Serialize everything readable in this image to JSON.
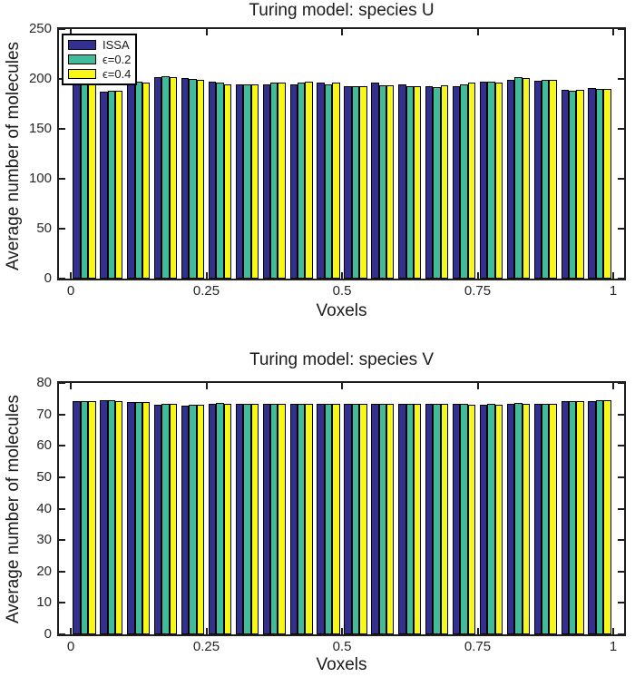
{
  "figure": {
    "axis_color": "#1e1e1e",
    "background": "#ffffff"
  },
  "chart_data": [
    {
      "type": "bar",
      "title": "Turing model: species U",
      "xlabel": "Voxels",
      "ylabel": "Average number of molecules",
      "ylim": [
        0,
        250
      ],
      "yticks": [
        0,
        50,
        100,
        150,
        200,
        250
      ],
      "ytick_labels": [
        "0",
        "50",
        "100",
        "150",
        "200",
        "250"
      ],
      "xticks": [
        0,
        0.25,
        0.5,
        0.75,
        1
      ],
      "xtick_labels": [
        "0",
        "0.25",
        "0.5",
        "0.75",
        "1"
      ],
      "grid": false,
      "legend_position": "northwest",
      "legend_visible": true,
      "x": [
        0.025,
        0.075,
        0.125,
        0.175,
        0.225,
        0.275,
        0.325,
        0.375,
        0.425,
        0.475,
        0.525,
        0.575,
        0.625,
        0.675,
        0.725,
        0.775,
        0.825,
        0.875,
        0.925,
        0.975
      ],
      "series": [
        {
          "name": "ISSA",
          "color": "#343090",
          "values": [
            197,
            187,
            195,
            202,
            201,
            197,
            195,
            195,
            195,
            196,
            193,
            196,
            195,
            193,
            193,
            197,
            199,
            198,
            189,
            191
          ]
        },
        {
          "name": "ϵ=0.2",
          "color": "#40bc9b",
          "values": [
            197,
            188,
            197,
            203,
            200,
            196,
            195,
            196,
            196,
            195,
            193,
            194,
            193,
            192,
            195,
            197,
            202,
            199,
            188,
            190
          ]
        },
        {
          "name": "ϵ=0.4",
          "color": "#f8f818",
          "values": [
            199,
            188,
            196,
            202,
            199,
            195,
            195,
            196,
            197,
            196,
            193,
            194,
            193,
            194,
            196,
            196,
            201,
            199,
            189,
            190
          ]
        }
      ]
    },
    {
      "type": "bar",
      "title": "Turing model: species V",
      "xlabel": "Voxels",
      "ylabel": "Average number of molecules",
      "ylim": [
        0,
        80
      ],
      "yticks": [
        0,
        10,
        20,
        30,
        40,
        50,
        60,
        70,
        80
      ],
      "ytick_labels": [
        "0",
        "10",
        "20",
        "30",
        "40",
        "50",
        "60",
        "70",
        "80"
      ],
      "xticks": [
        0,
        0.25,
        0.5,
        0.75,
        1
      ],
      "xtick_labels": [
        "0",
        "0.25",
        "0.5",
        "0.75",
        "1"
      ],
      "grid": false,
      "legend_position": null,
      "legend_visible": false,
      "x": [
        0.025,
        0.075,
        0.125,
        0.175,
        0.225,
        0.275,
        0.325,
        0.375,
        0.425,
        0.475,
        0.525,
        0.575,
        0.625,
        0.675,
        0.725,
        0.775,
        0.825,
        0.875,
        0.925,
        0.975
      ],
      "series": [
        {
          "name": "ISSA",
          "color": "#343090",
          "values": [
            74.2,
            74.4,
            73.8,
            73.2,
            72.9,
            73.3,
            73.4,
            73.3,
            73.4,
            73.3,
            73.3,
            73.4,
            73.3,
            73.4,
            73.3,
            73.2,
            73.5,
            73.4,
            74.1,
            74.3
          ]
        },
        {
          "name": "ϵ=0.2",
          "color": "#40bc9b",
          "values": [
            74.2,
            74.5,
            73.9,
            73.3,
            73.1,
            73.6,
            73.4,
            73.4,
            73.3,
            73.4,
            73.4,
            73.5,
            73.4,
            73.5,
            73.3,
            73.3,
            73.6,
            73.5,
            74.2,
            74.4
          ]
        },
        {
          "name": "ϵ=0.4",
          "color": "#f8f818",
          "values": [
            74.1,
            74.3,
            73.8,
            73.3,
            73.2,
            73.4,
            73.5,
            73.3,
            73.4,
            73.3,
            73.4,
            73.4,
            73.5,
            73.3,
            73.2,
            73.1,
            73.5,
            73.5,
            74.1,
            74.4
          ]
        }
      ]
    }
  ]
}
